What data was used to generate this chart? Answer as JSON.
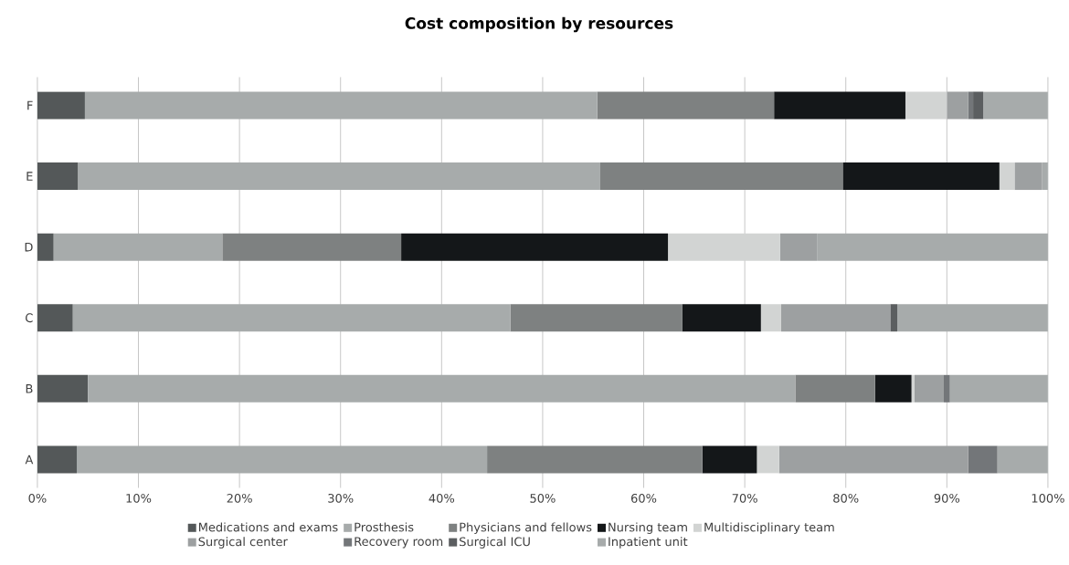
{
  "chart_data": {
    "type": "bar",
    "orientation": "horizontal",
    "stacked": true,
    "title": "Cost composition by resources",
    "categories": [
      "F",
      "E",
      "D",
      "C",
      "B",
      "A"
    ],
    "series": [
      {
        "name": "Medications and exams",
        "color": "#545859",
        "values": [
          4.7,
          4.0,
          1.6,
          3.5,
          5.0,
          3.9
        ]
      },
      {
        "name": "Prosthesis",
        "color": "#a7abab",
        "values": [
          50.7,
          51.7,
          16.7,
          43.3,
          70.0,
          40.6
        ]
      },
      {
        "name": "Physicians and fellows",
        "color": "#7e8181",
        "values": [
          17.5,
          24.0,
          17.7,
          17.0,
          7.9,
          21.3
        ]
      },
      {
        "name": "Nursing team",
        "color": "#141719",
        "values": [
          13.0,
          15.5,
          26.4,
          7.8,
          3.6,
          5.4
        ]
      },
      {
        "name": "Multidisciplinary team",
        "color": "#d2d4d3",
        "values": [
          4.1,
          1.5,
          11.1,
          2.0,
          0.3,
          2.2
        ]
      },
      {
        "name": "Surgical center",
        "color": "#9da0a1",
        "values": [
          2.1,
          2.7,
          3.7,
          10.8,
          2.9,
          18.7
        ]
      },
      {
        "name": "Recovery room",
        "color": "#737679",
        "values": [
          0.5,
          0,
          0,
          0,
          0.6,
          2.9
        ]
      },
      {
        "name": "Surgical ICU",
        "color": "#5b5e60",
        "values": [
          1.0,
          0,
          0,
          0.7,
          0,
          0
        ]
      },
      {
        "name": "Inpatient unit",
        "color": "#a7abab",
        "values": [
          6.4,
          0.6,
          22.9,
          14.9,
          9.7,
          5.0
        ]
      }
    ],
    "xlim": [
      0,
      100
    ],
    "xticks": [
      {
        "value": 0,
        "label": "0%"
      },
      {
        "value": 10,
        "label": "10%"
      },
      {
        "value": 20,
        "label": "20%"
      },
      {
        "value": 30,
        "label": "30%"
      },
      {
        "value": 40,
        "label": "40%"
      },
      {
        "value": 50,
        "label": "50%"
      },
      {
        "value": 60,
        "label": "60%"
      },
      {
        "value": 70,
        "label": "70%"
      },
      {
        "value": 80,
        "label": "80%"
      },
      {
        "value": 90,
        "label": "90%"
      },
      {
        "value": 100,
        "label": "100%"
      }
    ],
    "grid": "x",
    "legend": "bottom"
  }
}
